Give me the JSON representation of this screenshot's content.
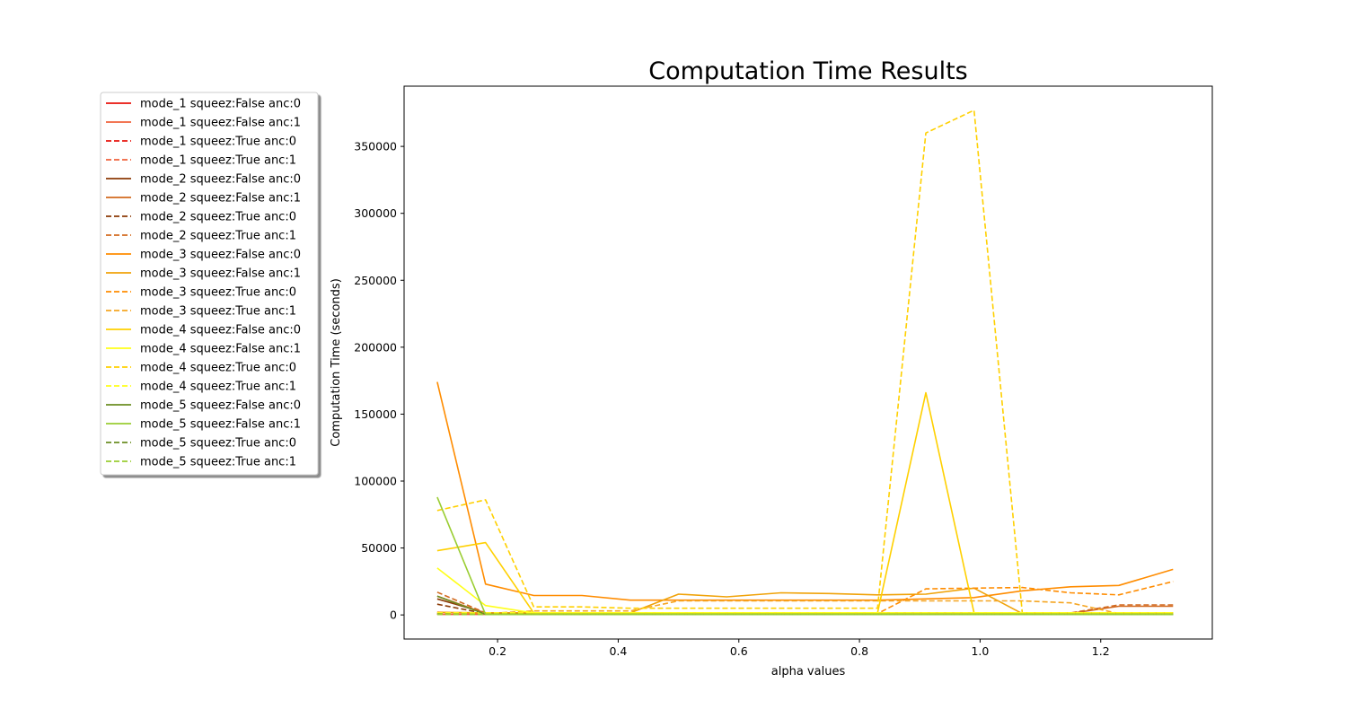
{
  "chart_data": {
    "type": "line",
    "title": "Computation Time Results",
    "xlabel": "alpha values",
    "ylabel": "Computation Time (seconds)",
    "xlim": [
      0.045,
      1.385
    ],
    "ylim": [
      -18000,
      395000
    ],
    "xticks": [
      0.2,
      0.4,
      0.6,
      0.8,
      1.0,
      1.2
    ],
    "xtick_labels": [
      "0.2",
      "0.4",
      "0.6",
      "0.8",
      "1.0",
      "1.2"
    ],
    "yticks": [
      0,
      50000,
      100000,
      150000,
      200000,
      250000,
      300000,
      350000
    ],
    "ytick_labels": [
      "0",
      "50000",
      "100000",
      "150000",
      "200000",
      "250000",
      "300000",
      "350000"
    ],
    "grid": false,
    "legend_placement": "upper-left-outside",
    "x": [
      0.1,
      0.18,
      0.26,
      0.34,
      0.42,
      0.5,
      0.58,
      0.67,
      0.75,
      0.83,
      0.91,
      0.99,
      1.07,
      1.15,
      1.23,
      1.32
    ],
    "series": [
      {
        "name": "mode_1 squeez:False anc:0",
        "color": "#e8130c",
        "dash": false,
        "values": [
          500,
          500,
          500,
          500,
          500,
          500,
          500,
          500,
          500,
          500,
          500,
          500,
          500,
          500,
          500,
          500
        ]
      },
      {
        "name": "mode_1 squeez:False anc:1",
        "color": "#f0623c",
        "dash": false,
        "values": [
          600,
          600,
          600,
          600,
          600,
          600,
          600,
          600,
          600,
          600,
          600,
          600,
          600,
          600,
          600,
          600
        ]
      },
      {
        "name": "mode_1 squeez:True anc:0",
        "color": "#e8130c",
        "dash": true,
        "values": [
          800,
          700,
          700,
          700,
          700,
          700,
          700,
          700,
          700,
          700,
          700,
          700,
          700,
          700,
          700,
          700
        ]
      },
      {
        "name": "mode_1 squeez:True anc:1",
        "color": "#f0623c",
        "dash": true,
        "values": [
          900,
          800,
          800,
          800,
          800,
          800,
          800,
          800,
          800,
          800,
          800,
          800,
          800,
          800,
          800,
          800
        ]
      },
      {
        "name": "mode_2 squeez:False anc:0",
        "color": "#8b3a06",
        "dash": false,
        "values": [
          12000,
          1500,
          1500,
          1500,
          1500,
          1500,
          1500,
          1500,
          1500,
          1500,
          1500,
          1500,
          1500,
          1500,
          1500,
          1500
        ]
      },
      {
        "name": "mode_2 squeez:False anc:1",
        "color": "#d2691e",
        "dash": false,
        "values": [
          14000,
          1200,
          1200,
          1200,
          1200,
          1200,
          1200,
          1200,
          1200,
          1200,
          1200,
          1200,
          1200,
          1200,
          6500,
          6500
        ]
      },
      {
        "name": "mode_2 squeez:True anc:0",
        "color": "#8b3a06",
        "dash": true,
        "values": [
          8000,
          1000,
          1000,
          1000,
          1000,
          1000,
          1000,
          1000,
          1000,
          1000,
          1000,
          1000,
          1000,
          1000,
          1000,
          1000
        ]
      },
      {
        "name": "mode_2 squeez:True anc:1",
        "color": "#d2691e",
        "dash": true,
        "values": [
          17000,
          1500,
          1500,
          1500,
          1500,
          1500,
          1500,
          1500,
          1500,
          1500,
          1500,
          1500,
          1500,
          1500,
          7500,
          7500
        ]
      },
      {
        "name": "mode_3 squeez:False anc:0",
        "color": "#ff8c00",
        "dash": false,
        "values": [
          174000,
          23000,
          14500,
          14500,
          11000,
          11000,
          11000,
          11000,
          11000,
          11000,
          12000,
          13000,
          18000,
          21000,
          22000,
          34000
        ]
      },
      {
        "name": "mode_3 squeez:False anc:1",
        "color": "#f0a30a",
        "dash": false,
        "values": [
          2000,
          1500,
          1500,
          1500,
          1500,
          15500,
          13500,
          16500,
          16000,
          15000,
          15500,
          20000,
          1000,
          1000,
          1000,
          1000
        ]
      },
      {
        "name": "mode_3 squeez:True anc:0",
        "color": "#ff8c00",
        "dash": true,
        "values": [
          2000,
          1000,
          1000,
          1000,
          1000,
          1000,
          1000,
          1000,
          1000,
          1000,
          19500,
          20000,
          20500,
          16500,
          15000,
          25000
        ]
      },
      {
        "name": "mode_3 squeez:True anc:1",
        "color": "#f5a623",
        "dash": true,
        "values": [
          1500,
          1000,
          3000,
          3000,
          3000,
          10500,
          10500,
          10500,
          10500,
          10500,
          10500,
          10500,
          10500,
          9000,
          1000,
          1000
        ]
      },
      {
        "name": "mode_4 squeez:False anc:0",
        "color": "#ffd000",
        "dash": false,
        "values": [
          48000,
          54000,
          1500,
          1500,
          1500,
          1500,
          1500,
          1500,
          1500,
          1500,
          166000,
          1500,
          1500,
          1500,
          1500,
          1500
        ]
      },
      {
        "name": "mode_4 squeez:False anc:1",
        "color": "#ffff1a",
        "dash": false,
        "values": [
          35000,
          7000,
          1500,
          1500,
          1500,
          1500,
          1500,
          1500,
          1500,
          1500,
          1500,
          1500,
          1500,
          1500,
          1500,
          1500
        ]
      },
      {
        "name": "mode_4 squeez:True anc:0",
        "color": "#ffd000",
        "dash": true,
        "values": [
          78000,
          86000,
          6000,
          6000,
          5000,
          5000,
          5000,
          5000,
          5000,
          5000,
          360000,
          377000,
          1500,
          1500,
          1500,
          1500
        ]
      },
      {
        "name": "mode_4 squeez:True anc:1",
        "color": "#ffff1a",
        "dash": true,
        "values": [
          1500,
          1500,
          1500,
          1500,
          1500,
          1500,
          1500,
          1500,
          1500,
          1500,
          1500,
          1500,
          1500,
          1500,
          1500,
          1500
        ]
      },
      {
        "name": "mode_5 squeez:False anc:0",
        "color": "#6b8e23",
        "dash": false,
        "values": [
          14000,
          500,
          500,
          500,
          500,
          500,
          500,
          500,
          500,
          500,
          500,
          500,
          500,
          500,
          500,
          500
        ]
      },
      {
        "name": "mode_5 squeez:False anc:1",
        "color": "#9acd32",
        "dash": false,
        "values": [
          88000,
          300,
          300,
          300,
          300,
          300,
          300,
          300,
          300,
          300,
          300,
          300,
          300,
          300,
          300,
          300
        ]
      },
      {
        "name": "mode_5 squeez:True anc:0",
        "color": "#6b8e23",
        "dash": true,
        "values": [
          700,
          400,
          400,
          400,
          400,
          400,
          400,
          400,
          400,
          400,
          400,
          400,
          400,
          400,
          400,
          400
        ]
      },
      {
        "name": "mode_5 squeez:True anc:1",
        "color": "#9acd32",
        "dash": true,
        "values": [
          400,
          300,
          300,
          300,
          300,
          300,
          300,
          300,
          300,
          300,
          300,
          300,
          300,
          300,
          300,
          300
        ]
      }
    ]
  }
}
